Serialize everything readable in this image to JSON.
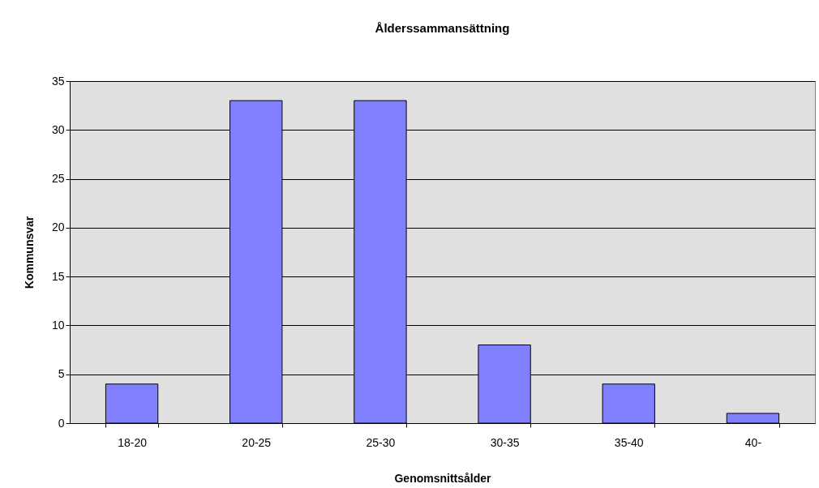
{
  "chart_data": {
    "type": "bar",
    "title": "Ålderssammansättning",
    "xlabel": "Genomsnittsålder",
    "ylabel": "Kommunsvar",
    "categories": [
      "18-20",
      "20-25",
      "25-30",
      "30-35",
      "35-40",
      "40-"
    ],
    "values": [
      4,
      33,
      33,
      8,
      4,
      1
    ],
    "color": "#8080ff",
    "ylim": [
      0,
      35
    ],
    "yticks": [
      0,
      5,
      10,
      15,
      20,
      25,
      30,
      35
    ],
    "grid": "y"
  }
}
